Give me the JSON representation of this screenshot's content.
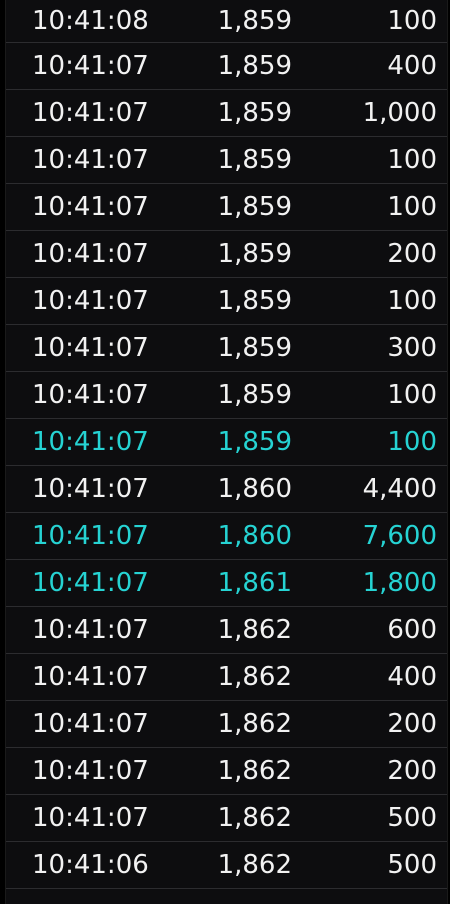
{
  "colors": {
    "background": "#000000",
    "panel": "#0d0d0f",
    "text": "#f2f2f2",
    "highlight": "#26d3d3",
    "divider": "#2c2c2f"
  },
  "trades": [
    {
      "time": "10:41:08",
      "price": "1,859",
      "volume": "100",
      "highlight": false
    },
    {
      "time": "10:41:07",
      "price": "1,859",
      "volume": "400",
      "highlight": false
    },
    {
      "time": "10:41:07",
      "price": "1,859",
      "volume": "1,000",
      "highlight": false
    },
    {
      "time": "10:41:07",
      "price": "1,859",
      "volume": "100",
      "highlight": false
    },
    {
      "time": "10:41:07",
      "price": "1,859",
      "volume": "100",
      "highlight": false
    },
    {
      "time": "10:41:07",
      "price": "1,859",
      "volume": "200",
      "highlight": false
    },
    {
      "time": "10:41:07",
      "price": "1,859",
      "volume": "100",
      "highlight": false
    },
    {
      "time": "10:41:07",
      "price": "1,859",
      "volume": "300",
      "highlight": false
    },
    {
      "time": "10:41:07",
      "price": "1,859",
      "volume": "100",
      "highlight": false
    },
    {
      "time": "10:41:07",
      "price": "1,859",
      "volume": "100",
      "highlight": true
    },
    {
      "time": "10:41:07",
      "price": "1,860",
      "volume": "4,400",
      "highlight": false
    },
    {
      "time": "10:41:07",
      "price": "1,860",
      "volume": "7,600",
      "highlight": true
    },
    {
      "time": "10:41:07",
      "price": "1,861",
      "volume": "1,800",
      "highlight": true
    },
    {
      "time": "10:41:07",
      "price": "1,862",
      "volume": "600",
      "highlight": false
    },
    {
      "time": "10:41:07",
      "price": "1,862",
      "volume": "400",
      "highlight": false
    },
    {
      "time": "10:41:07",
      "price": "1,862",
      "volume": "200",
      "highlight": false
    },
    {
      "time": "10:41:07",
      "price": "1,862",
      "volume": "200",
      "highlight": false
    },
    {
      "time": "10:41:07",
      "price": "1,862",
      "volume": "500",
      "highlight": false
    },
    {
      "time": "10:41:06",
      "price": "1,862",
      "volume": "500",
      "highlight": false
    }
  ]
}
